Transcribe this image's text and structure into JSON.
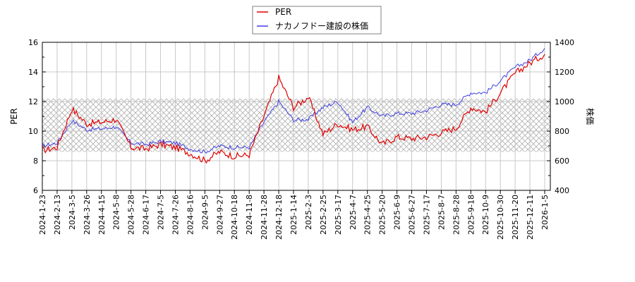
{
  "legend": {
    "items": [
      {
        "label": "PER",
        "color": "#e00000"
      },
      {
        "label": "ナカノフドー建設の株価",
        "color": "#4040e0"
      }
    ]
  },
  "axes": {
    "left_title": "PER",
    "right_title": "株価",
    "left_ticks": [
      "6",
      "8",
      "10",
      "12",
      "14",
      "16"
    ],
    "right_ticks": [
      "400",
      "600",
      "800",
      "1000",
      "1200",
      "1400"
    ]
  },
  "chart_data": {
    "type": "line",
    "title": "",
    "xlabel": "",
    "ylabel": "PER",
    "y2label": "株価",
    "ylim": [
      6,
      16
    ],
    "y2lim": [
      400,
      1400
    ],
    "grid": true,
    "legend_position": "top-center",
    "shaded_band_per": [
      8.6,
      12.2
    ],
    "x_tick_labels": [
      "2024-1-23",
      "2024-2-13",
      "2024-3-5",
      "2024-3-26",
      "2024-4-15",
      "2024-5-8",
      "2024-5-28",
      "2024-6-17",
      "2024-7-5",
      "2024-7-26",
      "2024-8-16",
      "2024-9-5",
      "2024-9-27",
      "2024-10-18",
      "2024-11-8",
      "2024-11-28",
      "2024-12-18",
      "2025-1-14",
      "2025-2-3",
      "2025-2-25",
      "2025-3-17",
      "2025-4-7",
      "2025-4-25",
      "2025-5-20",
      "2025-6-9",
      "2025-6-27",
      "2025-7-17",
      "2025-8-7",
      "2025-8-28",
      "2025-9-18",
      "2025-10-9",
      "2025-10-30",
      "2025-11-20",
      "2025-12-11",
      "2026-1-5"
    ],
    "x": [
      "2024-1-23",
      "2024-2-13",
      "2024-3-5",
      "2024-3-26",
      "2024-4-15",
      "2024-5-8",
      "2024-5-28",
      "2024-6-17",
      "2024-7-5",
      "2024-7-26",
      "2024-8-16",
      "2024-9-5",
      "2024-9-27",
      "2024-10-18",
      "2024-11-8",
      "2024-11-28",
      "2024-12-18",
      "2025-1-14",
      "2025-2-3",
      "2025-2-25",
      "2025-3-17",
      "2025-4-7",
      "2025-4-25",
      "2025-5-20",
      "2025-6-9",
      "2025-6-27",
      "2025-7-17",
      "2025-8-7",
      "2025-8-28",
      "2025-9-18",
      "2025-10-9",
      "2025-10-30",
      "2025-11-20",
      "2025-12-11",
      "2026-1-5"
    ],
    "series": [
      {
        "name": "PER",
        "axis": "left",
        "color": "#e00000",
        "values": [
          8.7,
          8.9,
          11.5,
          10.5,
          10.6,
          10.8,
          8.9,
          8.8,
          9.1,
          8.9,
          8.5,
          8.0,
          8.6,
          8.3,
          8.4,
          11.0,
          13.6,
          11.6,
          12.3,
          9.8,
          10.5,
          10.1,
          10.3,
          9.1,
          9.6,
          9.5,
          9.6,
          9.9,
          10.2,
          11.6,
          11.3,
          12.6,
          13.9,
          14.6,
          15.2
        ]
      },
      {
        "name": "ナカノフドー建設の株価",
        "axis": "right",
        "color": "#4040e0",
        "values": [
          700,
          720,
          870,
          810,
          815,
          830,
          720,
          710,
          730,
          720,
          680,
          660,
          700,
          690,
          690,
          860,
          1000,
          875,
          880,
          960,
          1000,
          860,
          960,
          900,
          920,
          920,
          940,
          980,
          980,
          1060,
          1060,
          1140,
          1230,
          1280,
          1360
        ]
      }
    ]
  }
}
